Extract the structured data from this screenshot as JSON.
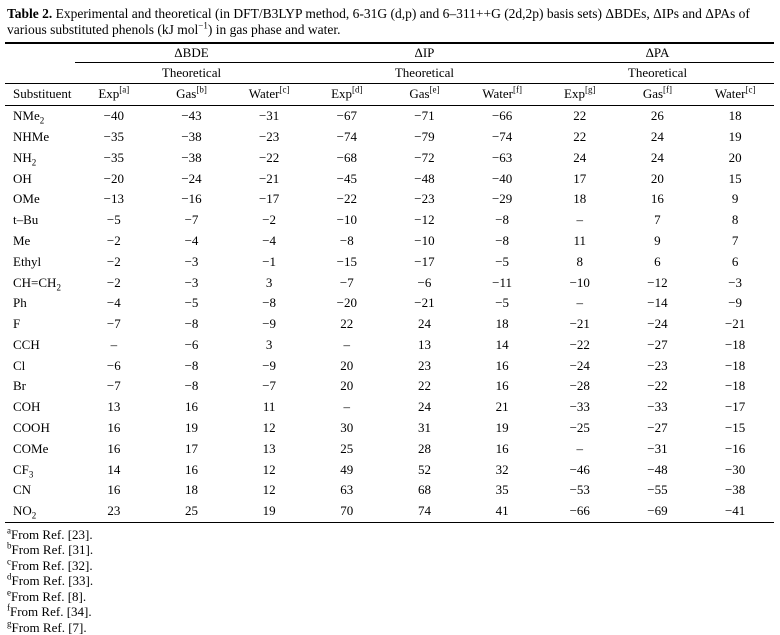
{
  "caption": {
    "label": "Table 2.",
    "body": " Experimental and theoretical (in DFT/B3LYP method, 6-31G (d,p) and 6–311++G (2d,2p) basis sets) ΔBDEs, ΔIPs and ΔPAs of various substituted phenols (kJ mol",
    "sup": "−1",
    "tail": ") in gas phase and water."
  },
  "table": {
    "groups": [
      "ΔBDE",
      "ΔIP",
      "ΔPA"
    ],
    "theoretical": "Theoretical",
    "substituent_header": "Substituent",
    "columns": [
      {
        "label": "Exp",
        "ref": "[a]"
      },
      {
        "label": "Gas",
        "ref": "[b]"
      },
      {
        "label": "Water",
        "ref": "[c]"
      },
      {
        "label": "Exp",
        "ref": "[d]"
      },
      {
        "label": "Gas",
        "ref": "[e]"
      },
      {
        "label": "Water",
        "ref": "[f]"
      },
      {
        "label": "Exp",
        "ref": "[g]"
      },
      {
        "label": "Gas",
        "ref": "[f]"
      },
      {
        "label": "Water",
        "ref": "[c]"
      }
    ],
    "rows": [
      {
        "name": "NMe",
        "sub": "2",
        "values": [
          "−40",
          "−43",
          "−31",
          "−67",
          "−71",
          "−66",
          "22",
          "26",
          "18"
        ]
      },
      {
        "name": "NHMe",
        "sub": "",
        "values": [
          "−35",
          "−38",
          "−23",
          "−74",
          "−79",
          "−74",
          "22",
          "24",
          "19"
        ]
      },
      {
        "name": "NH",
        "sub": "2",
        "values": [
          "−35",
          "−38",
          "−22",
          "−68",
          "−72",
          "−63",
          "24",
          "24",
          "20"
        ]
      },
      {
        "name": "OH",
        "sub": "",
        "values": [
          "−20",
          "−24",
          "−21",
          "−45",
          "−48",
          "−40",
          "17",
          "20",
          "15"
        ]
      },
      {
        "name": "OMe",
        "sub": "",
        "values": [
          "−13",
          "−16",
          "−17",
          "−22",
          "−23",
          "−29",
          "18",
          "16",
          "9"
        ]
      },
      {
        "name": "t–Bu",
        "sub": "",
        "values": [
          "−5",
          "−7",
          "−2",
          "−10",
          "−12",
          "−8",
          "–",
          "7",
          "8"
        ]
      },
      {
        "name": "Me",
        "sub": "",
        "values": [
          "−2",
          "−4",
          "−4",
          "−8",
          "−10",
          "−8",
          "11",
          "9",
          "7"
        ]
      },
      {
        "name": "Ethyl",
        "sub": "",
        "values": [
          "−2",
          "−3",
          "−1",
          "−15",
          "−17",
          "−5",
          "8",
          "6",
          "6"
        ]
      },
      {
        "name": "CH=CH",
        "sub": "2",
        "values": [
          "−2",
          "−3",
          "3",
          "−7",
          "−6",
          "−11",
          "−10",
          "−12",
          "−3"
        ]
      },
      {
        "name": "Ph",
        "sub": "",
        "values": [
          "−4",
          "−5",
          "−8",
          "−20",
          "−21",
          "−5",
          "–",
          "−14",
          "−9"
        ]
      },
      {
        "name": "F",
        "sub": "",
        "values": [
          "−7",
          "−8",
          "−9",
          "22",
          "24",
          "18",
          "−21",
          "−24",
          "−21"
        ]
      },
      {
        "name": "CCH",
        "sub": "",
        "values": [
          "–",
          "−6",
          "3",
          "–",
          "13",
          "14",
          "−22",
          "−27",
          "−18"
        ]
      },
      {
        "name": "Cl",
        "sub": "",
        "values": [
          "−6",
          "−8",
          "−9",
          "20",
          "23",
          "16",
          "−24",
          "−23",
          "−18"
        ]
      },
      {
        "name": "Br",
        "sub": "",
        "values": [
          "−7",
          "−8",
          "−7",
          "20",
          "22",
          "16",
          "−28",
          "−22",
          "−18"
        ]
      },
      {
        "name": "COH",
        "sub": "",
        "values": [
          "13",
          "16",
          "11",
          "–",
          "24",
          "21",
          "−33",
          "−33",
          "−17"
        ]
      },
      {
        "name": "COOH",
        "sub": "",
        "values": [
          "16",
          "19",
          "12",
          "30",
          "31",
          "19",
          "−25",
          "−27",
          "−15"
        ]
      },
      {
        "name": "COMe",
        "sub": "",
        "values": [
          "16",
          "17",
          "13",
          "25",
          "28",
          "16",
          "–",
          "−31",
          "−16"
        ]
      },
      {
        "name": "CF",
        "sub": "3",
        "values": [
          "14",
          "16",
          "12",
          "49",
          "52",
          "32",
          "−46",
          "−48",
          "−30"
        ]
      },
      {
        "name": "CN",
        "sub": "",
        "values": [
          "16",
          "18",
          "12",
          "63",
          "68",
          "35",
          "−53",
          "−55",
          "−38"
        ]
      },
      {
        "name": "NO",
        "sub": "2",
        "values": [
          "23",
          "25",
          "19",
          "70",
          "74",
          "41",
          "−66",
          "−69",
          "−41"
        ]
      }
    ]
  },
  "footnotes": [
    {
      "ref": "a",
      "text": "From Ref. [23]."
    },
    {
      "ref": "b",
      "text": "From Ref. [31]."
    },
    {
      "ref": "c",
      "text": "From Ref. [32]."
    },
    {
      "ref": "d",
      "text": "From Ref. [33]."
    },
    {
      "ref": "e",
      "text": "From Ref. [8]."
    },
    {
      "ref": "f",
      "text": "From Ref. [34]."
    },
    {
      "ref": "g",
      "text": "From Ref. [7]."
    }
  ]
}
